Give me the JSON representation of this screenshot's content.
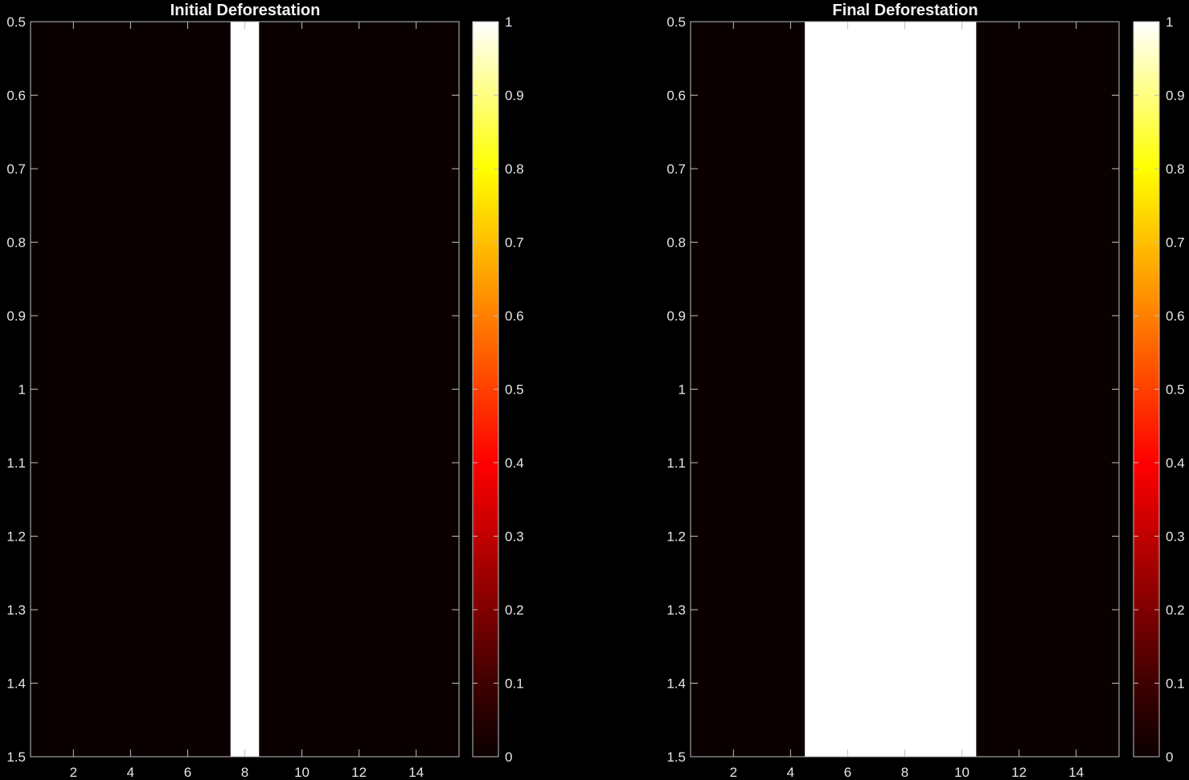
{
  "figure": {
    "background": "#000000",
    "axis_color": "#bfbfbf",
    "text_color": "#e6e6e6"
  },
  "colormap": {
    "name": "hot",
    "stops": [
      "#0b0000",
      "#400000",
      "#800000",
      "#c00000",
      "#ff0000",
      "#ff4000",
      "#ff8000",
      "#ffbf00",
      "#ffff00",
      "#ffff80",
      "#ffffff"
    ]
  },
  "chart_data": [
    {
      "type": "heatmap",
      "title": "Initial Deforestation",
      "xlim": [
        0.5,
        15.5
      ],
      "ylim": [
        0.5,
        1.5
      ],
      "y_reversed": true,
      "xticks": [
        2,
        4,
        6,
        8,
        10,
        12,
        14
      ],
      "yticks": [
        0.5,
        0.6,
        0.7,
        0.8,
        0.9,
        1,
        1.1,
        1.2,
        1.3,
        1.4,
        1.5
      ],
      "x": [
        1,
        2,
        3,
        4,
        5,
        6,
        7,
        8,
        9,
        10,
        11,
        12,
        13,
        14,
        15
      ],
      "y": [
        1
      ],
      "values": [
        [
          0,
          0,
          0,
          0,
          0,
          0,
          0,
          1,
          0,
          0,
          0,
          0,
          0,
          0,
          0
        ]
      ],
      "clim": [
        0,
        1
      ],
      "colorbar_ticks": [
        0,
        0.1,
        0.2,
        0.3,
        0.4,
        0.5,
        0.6,
        0.7,
        0.8,
        0.9,
        1
      ]
    },
    {
      "type": "heatmap",
      "title": "Final Deforestation",
      "xlim": [
        0.5,
        15.5
      ],
      "ylim": [
        0.5,
        1.5
      ],
      "y_reversed": true,
      "xticks": [
        2,
        4,
        6,
        8,
        10,
        12,
        14
      ],
      "yticks": [
        0.5,
        0.6,
        0.7,
        0.8,
        0.9,
        1,
        1.1,
        1.2,
        1.3,
        1.4,
        1.5
      ],
      "x": [
        1,
        2,
        3,
        4,
        5,
        6,
        7,
        8,
        9,
        10,
        11,
        12,
        13,
        14,
        15
      ],
      "y": [
        1
      ],
      "values": [
        [
          0,
          0,
          0,
          0,
          1,
          1,
          1,
          1,
          1,
          1,
          0,
          0,
          0,
          0,
          0
        ]
      ],
      "clim": [
        0,
        1
      ],
      "colorbar_ticks": [
        0,
        0.1,
        0.2,
        0.3,
        0.4,
        0.5,
        0.6,
        0.7,
        0.8,
        0.9,
        1
      ]
    }
  ]
}
